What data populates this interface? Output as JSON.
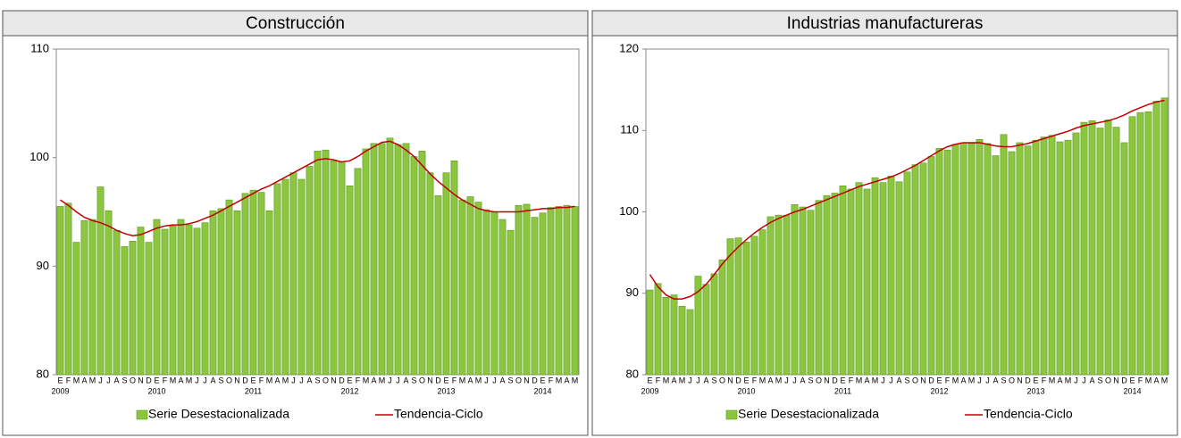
{
  "chart_data": [
    {
      "type": "combo",
      "title": "Construcción",
      "categories": [
        "E",
        "F",
        "M",
        "A",
        "M",
        "J",
        "J",
        "A",
        "S",
        "O",
        "N",
        "D",
        "E",
        "F",
        "M",
        "A",
        "M",
        "J",
        "J",
        "A",
        "S",
        "O",
        "N",
        "D",
        "E",
        "F",
        "M",
        "A",
        "M",
        "J",
        "J",
        "A",
        "S",
        "O",
        "N",
        "D",
        "E",
        "F",
        "M",
        "A",
        "M",
        "J",
        "J",
        "A",
        "S",
        "O",
        "N",
        "D",
        "E",
        "F",
        "M",
        "A",
        "M",
        "J",
        "J",
        "A",
        "S",
        "O",
        "N",
        "D",
        "E",
        "F",
        "M",
        "A",
        "M"
      ],
      "years": [
        "2009",
        "2010",
        "2011",
        "2012",
        "2013",
        "2014"
      ],
      "ylim": [
        80,
        110
      ],
      "yticks": [
        80,
        90,
        100,
        110
      ],
      "series": [
        {
          "name": "Serie Desestacionalizada",
          "type": "bar",
          "color": "#8cc63e",
          "values": [
            95.5,
            95.8,
            92.2,
            94.2,
            94.3,
            97.3,
            95.1,
            93.3,
            91.8,
            92.3,
            93.6,
            92.2,
            94.3,
            93.4,
            93.7,
            94.3,
            93.8,
            93.5,
            94.0,
            95.1,
            95.3,
            96.1,
            95.1,
            96.7,
            97.0,
            96.8,
            95.1,
            97.6,
            98.0,
            98.6,
            98.0,
            99.2,
            100.6,
            100.7,
            99.7,
            99.6,
            97.4,
            99.0,
            100.8,
            101.3,
            101.3,
            101.8,
            101.2,
            101.3,
            100.1,
            100.6,
            98.6,
            96.5,
            98.6,
            99.7,
            96.1,
            96.4,
            95.9,
            95.2,
            95.0,
            94.3,
            93.3,
            95.6,
            95.7,
            94.5,
            94.9,
            95.4,
            95.5,
            95.6,
            95.5
          ]
        },
        {
          "name": "Tendencia-Ciclo",
          "type": "line",
          "color": "#c00000",
          "values": [
            96.1,
            95.6,
            95.0,
            94.5,
            94.2,
            94.0,
            93.7,
            93.3,
            93.0,
            92.8,
            92.9,
            93.2,
            93.5,
            93.7,
            93.8,
            93.8,
            93.9,
            94.1,
            94.4,
            94.7,
            95.1,
            95.5,
            95.9,
            96.3,
            96.7,
            97.1,
            97.4,
            97.8,
            98.2,
            98.6,
            99.0,
            99.4,
            99.8,
            99.9,
            99.8,
            99.6,
            99.7,
            100.1,
            100.6,
            101.0,
            101.4,
            101.5,
            101.2,
            100.7,
            100.1,
            99.3,
            98.5,
            97.8,
            97.2,
            96.6,
            96.1,
            95.7,
            95.3,
            95.1,
            95.0,
            95.0,
            95.0,
            95.0,
            95.1,
            95.2,
            95.3,
            95.3,
            95.4,
            95.4,
            95.5
          ]
        }
      ]
    },
    {
      "type": "combo",
      "title": "Industrias manufactureras",
      "categories": [
        "E",
        "F",
        "M",
        "A",
        "M",
        "J",
        "J",
        "A",
        "S",
        "O",
        "N",
        "D",
        "E",
        "F",
        "M",
        "A",
        "M",
        "J",
        "J",
        "A",
        "S",
        "O",
        "N",
        "D",
        "E",
        "F",
        "M",
        "A",
        "M",
        "J",
        "J",
        "A",
        "S",
        "O",
        "N",
        "D",
        "E",
        "F",
        "M",
        "A",
        "M",
        "J",
        "J",
        "A",
        "S",
        "O",
        "N",
        "D",
        "E",
        "F",
        "M",
        "A",
        "M",
        "J",
        "J",
        "A",
        "S",
        "O",
        "N",
        "D",
        "E",
        "F",
        "M",
        "A",
        "M"
      ],
      "years": [
        "2009",
        "2010",
        "2011",
        "2012",
        "2013",
        "2014"
      ],
      "ylim": [
        80,
        120
      ],
      "yticks": [
        80,
        90,
        100,
        110,
        120
      ],
      "series": [
        {
          "name": "Serie Desestacionalizada",
          "type": "bar",
          "color": "#8cc63e",
          "values": [
            90.4,
            91.2,
            89.5,
            89.8,
            88.4,
            88.0,
            92.1,
            91.1,
            92.4,
            94.1,
            96.7,
            96.8,
            96.3,
            97.0,
            97.8,
            99.4,
            99.6,
            99.6,
            100.9,
            100.6,
            100.2,
            101.4,
            102.0,
            102.3,
            103.2,
            102.8,
            103.6,
            102.8,
            104.2,
            103.6,
            104.4,
            103.7,
            104.9,
            105.8,
            106.0,
            106.8,
            107.8,
            107.6,
            108.3,
            108.5,
            108.4,
            108.9,
            108.4,
            106.9,
            109.5,
            107.4,
            108.5,
            108.1,
            108.8,
            109.2,
            109.4,
            108.6,
            108.8,
            109.7,
            111.0,
            111.2,
            110.3,
            111.3,
            110.4,
            108.5,
            111.7,
            112.2,
            112.3,
            113.6,
            114.0
          ]
        },
        {
          "name": "Tendencia-Ciclo",
          "type": "line",
          "color": "#c00000",
          "values": [
            92.3,
            90.8,
            89.8,
            89.3,
            89.3,
            89.6,
            90.2,
            91.1,
            92.3,
            93.6,
            94.7,
            95.7,
            96.6,
            97.4,
            98.1,
            98.7,
            99.2,
            99.6,
            100.0,
            100.3,
            100.7,
            101.1,
            101.5,
            101.9,
            102.3,
            102.7,
            103.1,
            103.4,
            103.7,
            104.0,
            104.3,
            104.7,
            105.2,
            105.7,
            106.3,
            106.9,
            107.5,
            108.0,
            108.3,
            108.5,
            108.5,
            108.5,
            108.3,
            108.1,
            108.0,
            108.0,
            108.2,
            108.4,
            108.7,
            109.0,
            109.3,
            109.6,
            109.9,
            110.3,
            110.6,
            110.8,
            111.0,
            111.2,
            111.5,
            111.9,
            112.4,
            112.8,
            113.2,
            113.5,
            113.7
          ]
        }
      ]
    }
  ]
}
